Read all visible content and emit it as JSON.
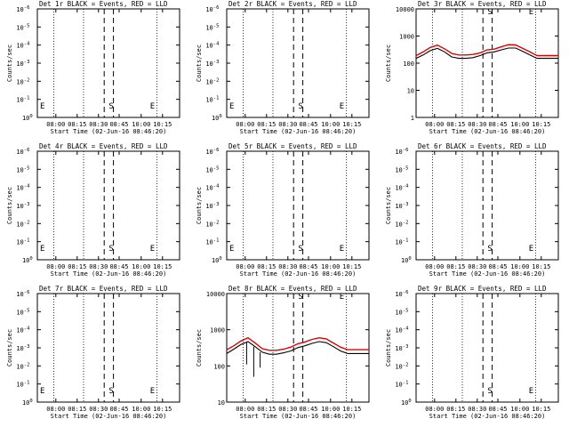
{
  "figure": {
    "panel_title_suffix": "BLACK = Events, RED = LLD",
    "xlabel": "Start Time (02-Jun-16 08:46:20)",
    "ylabel": "Counts/sec"
  },
  "colors": {
    "events": "#000000",
    "lld": "#e00000",
    "axes": "#000000",
    "background": "#ffffff"
  },
  "chart_data": [
    {
      "type": "line",
      "detector": "Det 1r",
      "title": "Det 1r BLACK = Events, RED = LLD",
      "xlabel": "Start Time (02-Jun-16 08:46:20)",
      "ylabel": "Counts/sec",
      "x_ticks": [
        "08:00",
        "08:15",
        "08:30",
        "08:45",
        "10:00",
        "10:15"
      ],
      "y_ticks": [
        "10^0",
        "10^-1",
        "10^-2",
        "10^-3",
        "10^-4",
        "10^-5",
        "10^-6"
      ],
      "markers": [
        {
          "label": "E",
          "pos": 0.0
        },
        {
          "label": "S",
          "pos": 0.515
        },
        {
          "label": "E",
          "pos": 0.805
        }
      ],
      "series": []
    },
    {
      "type": "line",
      "detector": "Det 2r",
      "title": "Det 2r BLACK = Events, RED = LLD",
      "xlabel": "Start Time (02-Jun-16 08:46:20)",
      "ylabel": "Counts/sec",
      "x_ticks": [
        "08:00",
        "08:15",
        "08:30",
        "08:45",
        "10:00",
        "10:15"
      ],
      "y_ticks": [
        "10^0",
        "10^-1",
        "10^-2",
        "10^-3",
        "10^-4",
        "10^-5",
        "10^-6"
      ],
      "markers": [
        {
          "label": "E",
          "pos": 0.0
        },
        {
          "label": "S",
          "pos": 0.515
        },
        {
          "label": "E",
          "pos": 0.805
        }
      ],
      "series": []
    },
    {
      "type": "line",
      "detector": "Det 3r",
      "title": "Det 3r BLACK = Events, RED = LLD",
      "xlabel": "Start Time (02-Jun-16 08:46:20)",
      "ylabel": "Counts/sec",
      "x_ticks": [
        "08:00",
        "08:15",
        "08:30",
        "08:45",
        "10:00",
        "10:15"
      ],
      "y_ticks": [
        "1",
        "10",
        "100",
        "1000",
        "10000"
      ],
      "log_y": true,
      "ylim": [
        1,
        10000
      ],
      "markers": [
        {
          "label": "S",
          "pos": 0.515
        },
        {
          "label": "E",
          "pos": 0.805
        }
      ],
      "x": [
        0.0,
        0.05,
        0.1,
        0.15,
        0.2,
        0.25,
        0.3,
        0.35,
        0.4,
        0.45,
        0.5,
        0.55,
        0.6,
        0.65,
        0.7,
        0.75,
        0.8,
        0.85,
        0.9,
        0.95,
        1.0
      ],
      "series": [
        {
          "name": "LLD",
          "values": [
            190,
            260,
            380,
            460,
            340,
            230,
            200,
            200,
            210,
            240,
            310,
            330,
            400,
            480,
            470,
            350,
            260,
            190,
            190,
            190,
            190
          ]
        },
        {
          "name": "Events",
          "values": [
            150,
            200,
            290,
            350,
            260,
            170,
            150,
            150,
            160,
            190,
            240,
            260,
            310,
            360,
            360,
            270,
            200,
            150,
            150,
            150,
            150
          ]
        }
      ]
    },
    {
      "type": "line",
      "detector": "Det 4r",
      "title": "Det 4r BLACK = Events, RED = LLD",
      "xlabel": "Start Time (02-Jun-16 08:46:20)",
      "ylabel": "Counts/sec",
      "x_ticks": [
        "08:00",
        "08:15",
        "08:30",
        "08:45",
        "10:00",
        "10:15"
      ],
      "y_ticks": [
        "10^0",
        "10^-1",
        "10^-2",
        "10^-3",
        "10^-4",
        "10^-5",
        "10^-6"
      ],
      "markers": [
        {
          "label": "E",
          "pos": 0.0
        },
        {
          "label": "S",
          "pos": 0.515
        },
        {
          "label": "E",
          "pos": 0.805
        }
      ],
      "series": []
    },
    {
      "type": "line",
      "detector": "Det 5r",
      "title": "Det 5r BLACK = Events, RED = LLD",
      "xlabel": "Start Time (02-Jun-16 08:46:20)",
      "ylabel": "Counts/sec",
      "x_ticks": [
        "08:00",
        "08:15",
        "08:30",
        "08:45",
        "10:00",
        "10:15"
      ],
      "y_ticks": [
        "10^0",
        "10^-1",
        "10^-2",
        "10^-3",
        "10^-4",
        "10^-5",
        "10^-6"
      ],
      "markers": [
        {
          "label": "E",
          "pos": 0.0
        },
        {
          "label": "S",
          "pos": 0.515
        },
        {
          "label": "E",
          "pos": 0.805
        }
      ],
      "series": []
    },
    {
      "type": "line",
      "detector": "Det 6r",
      "title": "Det 6r BLACK = Events, RED = LLD",
      "xlabel": "Start Time (02-Jun-16 08:46:20)",
      "ylabel": "Counts/sec",
      "x_ticks": [
        "08:00",
        "08:15",
        "08:30",
        "08:45",
        "10:00",
        "10:15"
      ],
      "y_ticks": [
        "10^0",
        "10^-1",
        "10^-2",
        "10^-3",
        "10^-4",
        "10^-5",
        "10^-6"
      ],
      "markers": [
        {
          "label": "S",
          "pos": 0.515
        },
        {
          "label": "E",
          "pos": 0.805
        }
      ],
      "series": []
    },
    {
      "type": "line",
      "detector": "Det 7r",
      "title": "Det 7r BLACK = Events, RED = LLD",
      "xlabel": "Start Time (02-Jun-16 08:46:20)",
      "ylabel": "Counts/sec",
      "x_ticks": [
        "08:00",
        "08:15",
        "08:30",
        "08:45",
        "10:00",
        "10:15"
      ],
      "y_ticks": [
        "10^0",
        "10^-1",
        "10^-2",
        "10^-3",
        "10^-4",
        "10^-5",
        "10^-6"
      ],
      "markers": [
        {
          "label": "E",
          "pos": 0.0
        },
        {
          "label": "S",
          "pos": 0.515
        },
        {
          "label": "E",
          "pos": 0.805
        }
      ],
      "series": []
    },
    {
      "type": "line",
      "detector": "Det 8r",
      "title": "Det 8r BLACK = Events, RED = LLD",
      "xlabel": "Start Time (02-Jun-16 08:46:20)",
      "ylabel": "Counts/sec",
      "x_ticks": [
        "08:00",
        "08:15",
        "08:30",
        "08:45",
        "10:00",
        "10:15"
      ],
      "y_ticks": [
        "10",
        "100",
        "1000",
        "10000"
      ],
      "log_y": true,
      "ylim": [
        10,
        10000
      ],
      "markers": [
        {
          "label": "S",
          "pos": 0.515
        },
        {
          "label": "E",
          "pos": 0.805
        }
      ],
      "x": [
        0.0,
        0.05,
        0.1,
        0.15,
        0.2,
        0.25,
        0.3,
        0.35,
        0.4,
        0.45,
        0.5,
        0.55,
        0.6,
        0.65,
        0.7,
        0.75,
        0.8,
        0.85,
        0.9,
        0.95,
        1.0
      ],
      "series": [
        {
          "name": "LLD",
          "values": [
            280,
            360,
            490,
            600,
            430,
            300,
            270,
            270,
            290,
            330,
            410,
            460,
            540,
            600,
            560,
            430,
            330,
            280,
            280,
            280,
            280
          ]
        },
        {
          "name": "Events",
          "values": [
            220,
            290,
            390,
            470,
            340,
            240,
            210,
            210,
            230,
            260,
            320,
            360,
            420,
            470,
            440,
            340,
            260,
            220,
            220,
            220,
            220
          ]
        }
      ],
      "spikes": [
        {
          "x": 0.14,
          "value": 110
        },
        {
          "x": 0.19,
          "value": 50
        },
        {
          "x": 0.235,
          "value": 90
        }
      ]
    },
    {
      "type": "line",
      "detector": "Det 9r",
      "title": "Det 9r BLACK = Events, RED = LLD",
      "xlabel": "Start Time (02-Jun-16 08:46:20)",
      "ylabel": "Counts/sec",
      "x_ticks": [
        "08:00",
        "08:15",
        "08:30",
        "08:45",
        "10:00",
        "10:15"
      ],
      "y_ticks": [
        "10^0",
        "10^-1",
        "10^-2",
        "10^-3",
        "10^-4",
        "10^-5",
        "10^-6"
      ],
      "markers": [
        {
          "label": "S",
          "pos": 0.515
        },
        {
          "label": "E",
          "pos": 0.805
        }
      ],
      "series": []
    }
  ]
}
